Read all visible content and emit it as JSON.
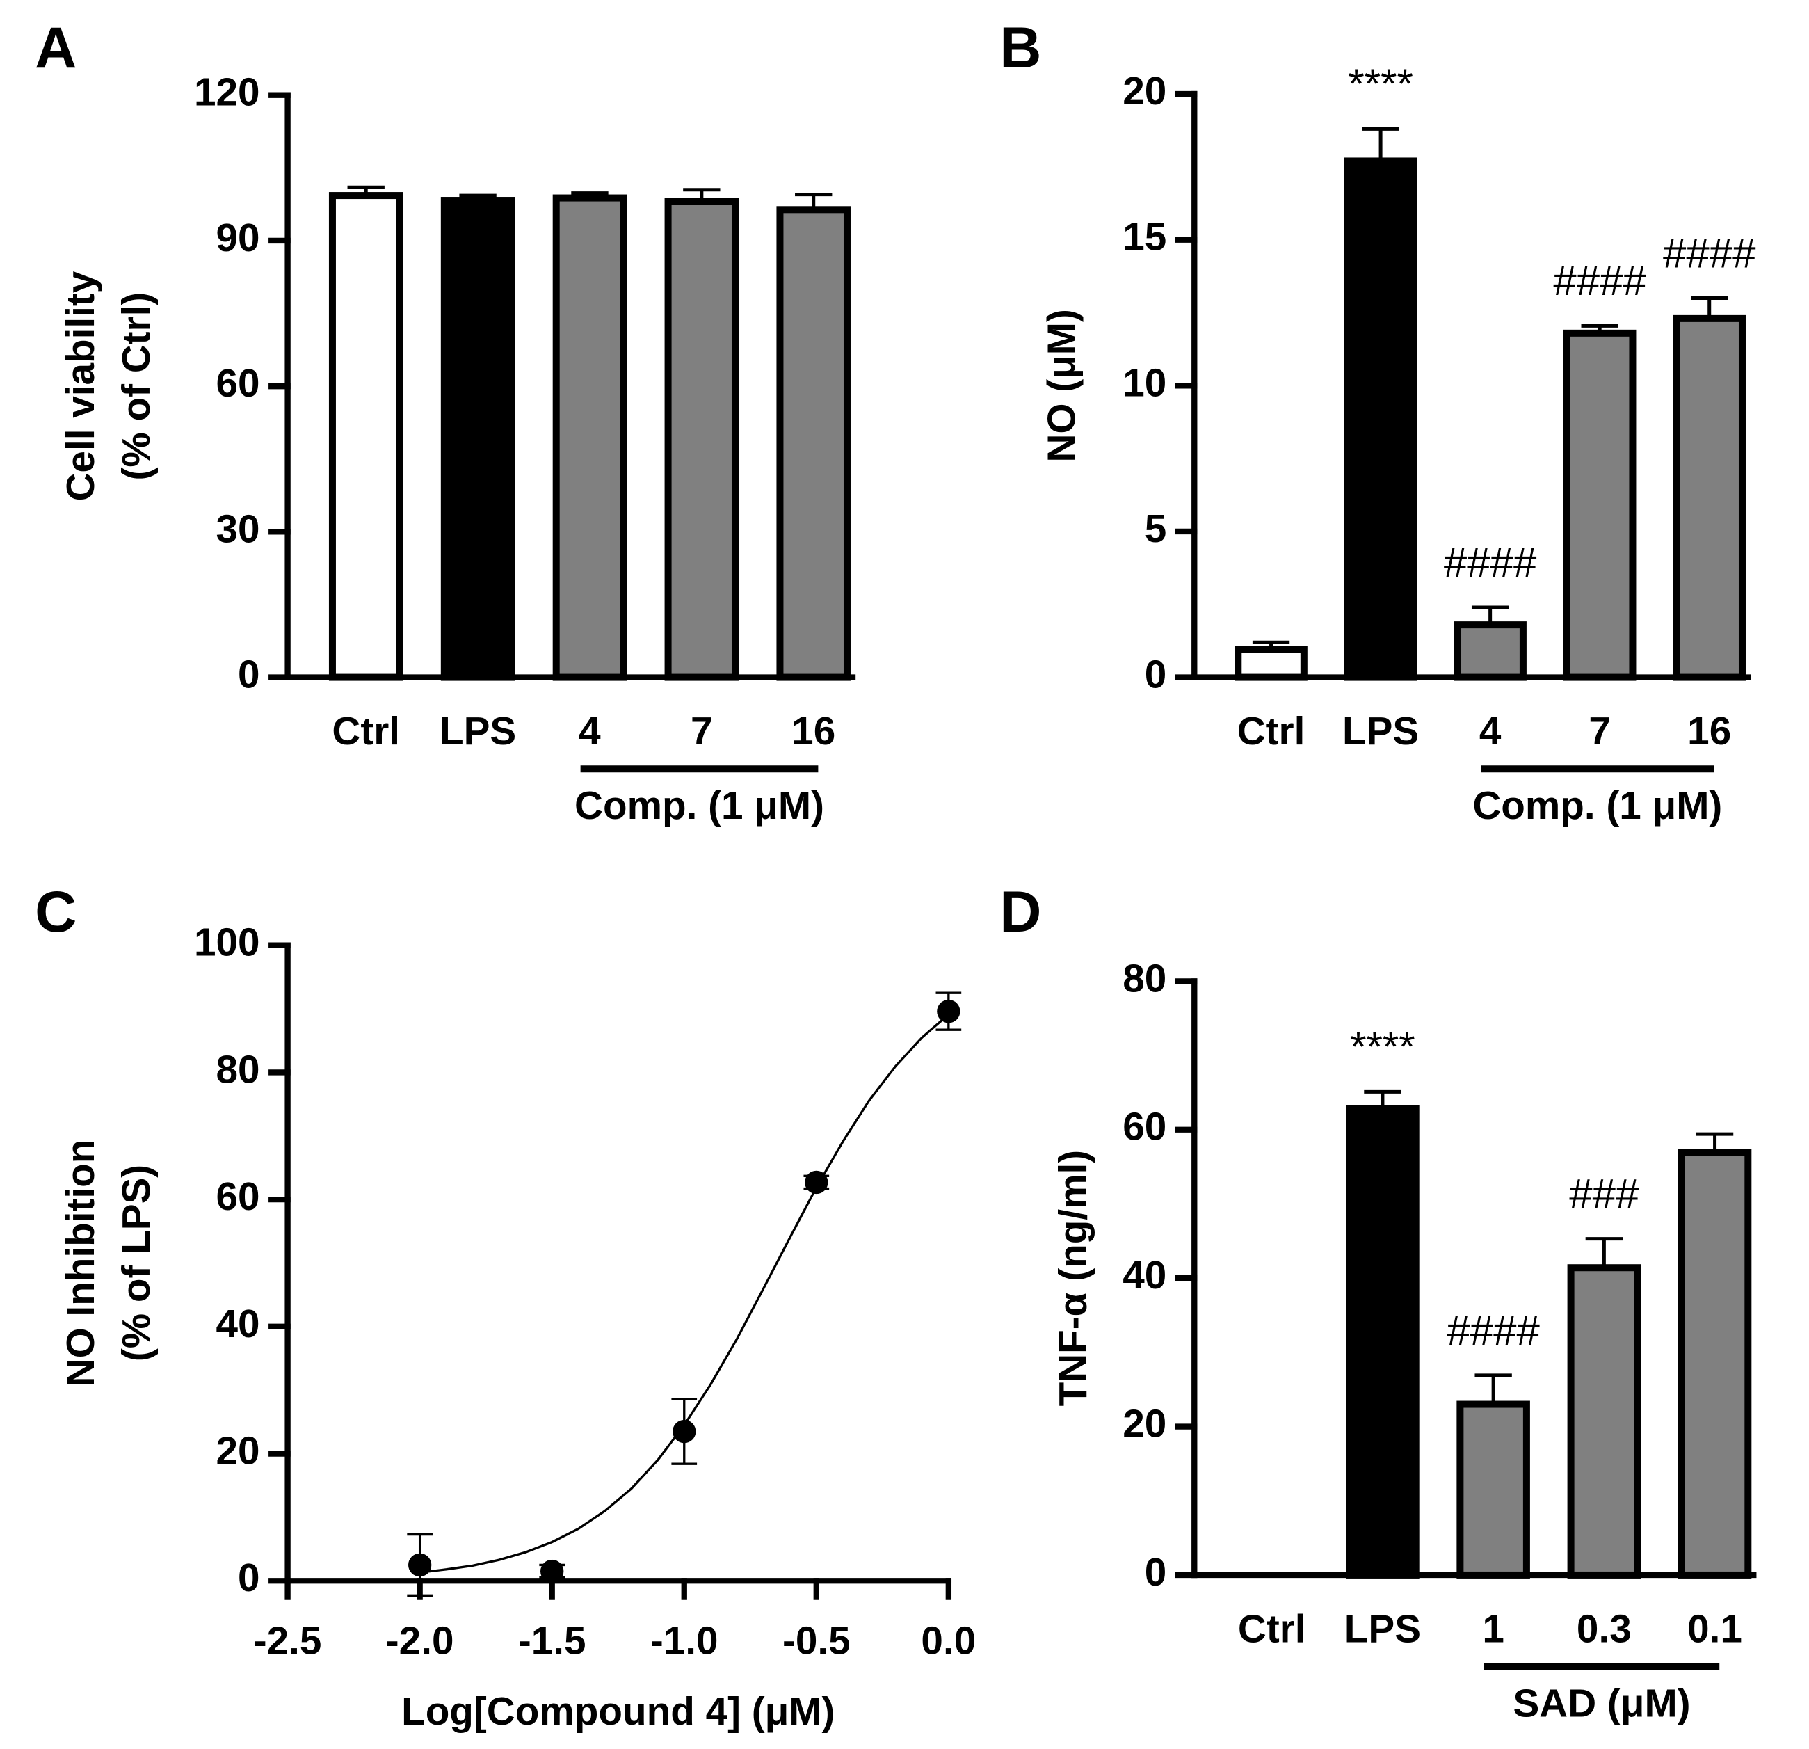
{
  "chart_data": [
    {
      "type": "bar",
      "panel": "A",
      "ylabel": [
        "Cell viability",
        "(% of Ctrl)"
      ],
      "categories": [
        "Ctrl",
        "LPS",
        "4",
        "7",
        "16"
      ],
      "values": [
        99.3,
        98.3,
        98.8,
        98.1,
        96.4
      ],
      "errors": [
        1.7,
        1.0,
        1.0,
        2.4,
        3.1
      ],
      "colors": [
        "#ffffff",
        "#000000",
        "#808080",
        "#808080",
        "#808080"
      ],
      "edgecolor": "#000000",
      "annotations": [
        null,
        null,
        null,
        null,
        null
      ],
      "group": {
        "label": "Comp. (1 μM)",
        "first": 2,
        "last": 4
      },
      "ylim": [
        0,
        120
      ],
      "yticks": [
        0,
        30,
        60,
        90,
        120
      ]
    },
    {
      "type": "bar",
      "panel": "B",
      "ylabel": "NO (μM)",
      "categories": [
        "Ctrl",
        "LPS",
        "4",
        "7",
        "16"
      ],
      "values": [
        0.95,
        17.7,
        1.8,
        11.8,
        12.3
      ],
      "errors": [
        0.25,
        1.1,
        0.6,
        0.25,
        0.7
      ],
      "colors": [
        "#ffffff",
        "#000000",
        "#808080",
        "#808080",
        "#808080"
      ],
      "edgecolor": "#000000",
      "annotations": [
        null,
        "****",
        "####",
        "####",
        "####"
      ],
      "group": {
        "label": "Comp. (1 μM)",
        "first": 2,
        "last": 4
      },
      "ylim": [
        0,
        20
      ],
      "yticks": [
        0,
        5,
        10,
        15,
        20
      ]
    },
    {
      "type": "scatter",
      "panel": "C",
      "ylabel": [
        "NO Inhibition",
        "(% of LPS)"
      ],
      "xlabel": "Log[Compound 4] (μM)",
      "x": [
        -2.0,
        -1.5,
        -1.0,
        -0.5,
        0.0
      ],
      "y": [
        2.5,
        1.5,
        23.5,
        62.7,
        89.6
      ],
      "errors": [
        4.8,
        1.0,
        5.1,
        1.0,
        2.9
      ],
      "color": "#000000",
      "fit": {
        "x": [
          -2.0,
          -1.9,
          -1.8,
          -1.7,
          -1.6,
          -1.5,
          -1.4,
          -1.3,
          -1.2,
          -1.1,
          -1.0,
          -0.9,
          -0.8,
          -0.7,
          -0.6,
          -0.5,
          -0.4,
          -0.3,
          -0.2,
          -0.1,
          0.0
        ],
        "y": [
          1.3,
          1.8,
          2.4,
          3.3,
          4.5,
          6.1,
          8.2,
          11.0,
          14.5,
          19.0,
          24.5,
          30.9,
          38.1,
          46.0,
          54.0,
          61.9,
          69.1,
          75.6,
          81.0,
          85.5,
          89.1
        ]
      },
      "xlim": [
        -2.5,
        0.0
      ],
      "xticks": [
        -2.5,
        {
          "value": -2,
          "label": "-2.0"
        },
        -1.5,
        {
          "value": -1,
          "label": "-1.0"
        },
        -0.5,
        {
          "value": 0,
          "label": "0.0"
        }
      ],
      "ylim": [
        0,
        100
      ],
      "yticks": [
        0,
        20,
        40,
        60,
        80,
        100
      ]
    },
    {
      "type": "bar",
      "panel": "D",
      "ylabel": "TNF-α (ng/ml)",
      "categories": [
        "Ctrl",
        "LPS",
        "1",
        "0.3",
        "0.1"
      ],
      "values": [
        0,
        62.8,
        23.0,
        41.4,
        56.9
      ],
      "errors": [
        null,
        2.3,
        3.9,
        3.9,
        2.5
      ],
      "colors": [
        "#ffffff",
        "#000000",
        "#808080",
        "#808080",
        "#808080"
      ],
      "edgecolor": "#000000",
      "annotations": [
        null,
        "****",
        "####",
        "###",
        null
      ],
      "group": {
        "label": "SAD (μM)",
        "first": 2,
        "last": 4
      },
      "ylim": [
        0,
        80
      ],
      "yticks": [
        0,
        20,
        40,
        60,
        80
      ]
    }
  ]
}
